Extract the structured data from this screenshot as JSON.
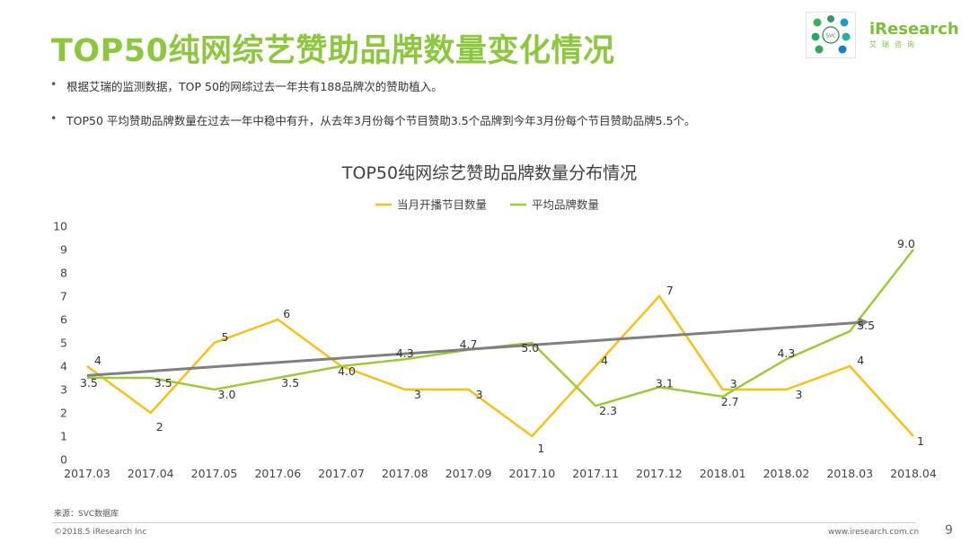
{
  "slide": {
    "title": "TOP50纯网综艺赞助品牌数量变化情况",
    "bullets": [
      "根据艾瑞的监测数据，TOP 50的网综过去一年共有188品牌次的赞助植入。",
      "TOP50 平均赞助品牌数量在过去一年中稳中有升，从去年3月份每个节目赞助3.5个品牌到今年3月份每个节目赞助品牌5.5个。"
    ],
    "source": "来源：SVC数据库",
    "footer_left": "©2018.5 iResearch Inc",
    "footer_right": "www.iresearch.com.cn",
    "page_number": "9"
  },
  "brand": {
    "name": "iResearch",
    "subtitle": "艾瑞咨询",
    "logo_label": "SVC",
    "color": "#7dbf3b"
  },
  "chart_data": {
    "type": "line",
    "title": "TOP50纯网综艺赞助品牌数量分布情况",
    "categories": [
      "2017.03",
      "2017.04",
      "2017.05",
      "2017.06",
      "2017.07",
      "2017.08",
      "2017.09",
      "2017.10",
      "2017.11",
      "2017.12",
      "2018.01",
      "2018.02",
      "2018.03",
      "2018.04"
    ],
    "series": [
      {
        "name": "当月开播节目数量",
        "color": "#f5c018",
        "values": [
          4,
          2,
          5,
          6,
          4,
          3,
          3,
          1,
          4,
          7,
          3,
          3,
          4,
          1
        ],
        "labels": [
          "4",
          "2",
          "5",
          "6",
          "",
          "3",
          "3",
          "1",
          "4",
          "7",
          "3",
          "3",
          "4",
          "1"
        ]
      },
      {
        "name": "平均品牌数量",
        "color": "#9dc93b",
        "values": [
          3.5,
          3.5,
          3.0,
          3.5,
          4.0,
          4.3,
          4.7,
          5.0,
          2.3,
          3.1,
          2.7,
          4.3,
          5.5,
          9.0
        ],
        "labels": [
          "3.5",
          "3.5",
          "3.0",
          "3.5",
          "4.0",
          "4.3",
          "4.7",
          "5.0",
          "2.3",
          "3.1",
          "2.7",
          "4.3",
          "5.5",
          "9.0"
        ]
      }
    ],
    "trend_arrow": {
      "from": [
        0,
        3.6
      ],
      "to": [
        12.3,
        5.9
      ],
      "color": "#808080"
    },
    "ylim": [
      0,
      10
    ],
    "yticks": [
      0,
      1,
      2,
      3,
      4,
      5,
      6,
      7,
      8,
      9,
      10
    ],
    "grid": false,
    "legend": "top-center"
  }
}
